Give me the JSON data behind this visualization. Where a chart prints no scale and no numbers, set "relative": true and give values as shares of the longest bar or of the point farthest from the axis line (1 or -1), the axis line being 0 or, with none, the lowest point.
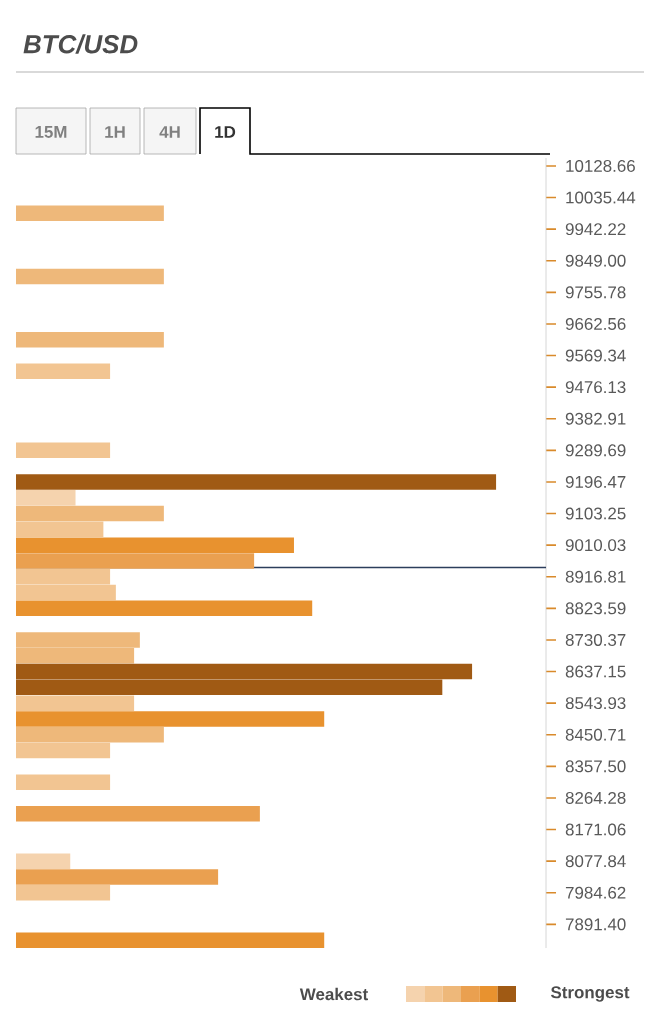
{
  "chart_data": {
    "type": "bar",
    "orientation": "horizontal",
    "relative": true,
    "title": "BTC/USD",
    "annotations": [
      "15M",
      "1H",
      "4H",
      "1D",
      "Weakest",
      "Strongest"
    ],
    "x": [
      9988.83,
      9802.39,
      9615.95,
      9522.73,
      9289.69,
      9196.47,
      9149.86,
      9103.25,
      9056.64,
      9010.03,
      8963.42,
      8916.81,
      8870.2,
      8823.59,
      8730.37,
      8683.76,
      8637.15,
      8590.54,
      8543.93,
      8497.32,
      8450.71,
      8404.1,
      8310.89,
      8217.67,
      8077.84,
      8031.23,
      7984.62,
      7844.79
    ],
    "values": [
      0.308,
      0.308,
      0.308,
      0.196,
      0.196,
      1,
      0.124,
      0.308,
      0.182,
      0.579,
      0.496,
      0.196,
      0.208,
      0.617,
      0.258,
      0.246,
      0.95,
      0.888,
      0.246,
      0.642,
      0.308,
      0.196,
      0.196,
      0.508,
      0.113,
      0.421,
      0.196,
      0.642
    ],
    "colors": [
      "#eeb87a",
      "#eeb87a",
      "#eeb87a",
      "#f2c592",
      "#f2c592",
      "#a05a14",
      "#f5d3ae",
      "#eeb87a",
      "#f2c592",
      "#e8922f",
      "#eaa050",
      "#f2c592",
      "#f2c592",
      "#e8922f",
      "#eeb87a",
      "#eeb87a",
      "#a05a14",
      "#a05a14",
      "#f2c592",
      "#e8922f",
      "#eeb87a",
      "#f2c592",
      "#f2c592",
      "#eaa050",
      "#f5d3ae",
      "#eaa050",
      "#f2c592",
      "#e8922f"
    ],
    "ylim": [
      7821.49,
      10151.97
    ],
    "yticks": [
      10128.66,
      10035.44,
      9942.22,
      {
        "value": 9849,
        "label": "9849.00"
      },
      9755.78,
      9662.56,
      9569.34,
      9476.13,
      9382.91,
      9289.69,
      9196.47,
      9103.25,
      9010.03,
      8916.81,
      8823.59,
      8730.37,
      8637.15,
      8543.93,
      8450.71,
      {
        "value": 8357.5,
        "label": "8357.50"
      },
      8264.28,
      8171.06,
      8077.84,
      7984.62,
      {
        "value": 7891.4,
        "label": "7891.40"
      }
    ],
    "ref_lines": [
      {
        "axis": "y",
        "value": 8944,
        "color": "#2c3e5c"
      }
    ]
  }
}
